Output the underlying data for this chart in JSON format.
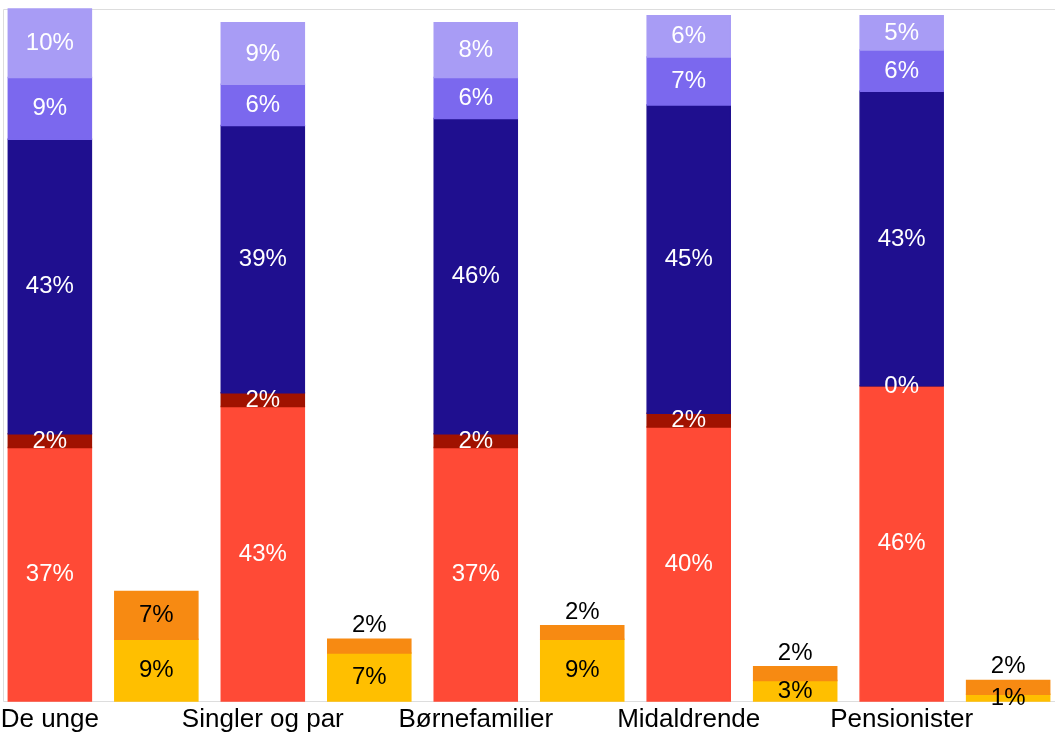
{
  "chart_data": {
    "type": "bar",
    "stacked": true,
    "legend": false,
    "grid": false,
    "tick_labels": "x",
    "categories": [
      "De unge",
      null,
      "Singler og par",
      null,
      "Børnefamilier",
      null,
      "Midaldrende",
      null,
      "Pensionister",
      null
    ],
    "series": [
      {
        "color": "#ff4a36",
        "values": [
          37,
          null,
          43,
          null,
          37,
          null,
          40,
          null,
          46,
          null
        ],
        "value_labels": [
          "37%",
          null,
          "43%",
          null,
          "37%",
          null,
          "40%",
          null,
          "46%",
          null
        ]
      },
      {
        "color": "#a01200",
        "values": [
          2,
          null,
          2,
          null,
          2,
          null,
          2,
          null,
          0,
          null
        ],
        "value_labels": [
          "2%",
          null,
          "2%",
          null,
          "2%",
          null,
          "2%",
          null,
          "0%",
          null
        ]
      },
      {
        "color": "#1f0f8f",
        "values": [
          43,
          null,
          39,
          null,
          46,
          null,
          45,
          null,
          43,
          null
        ],
        "value_labels": [
          "43%",
          null,
          "39%",
          null,
          "46%",
          null,
          "45%",
          null,
          "43%",
          null
        ]
      },
      {
        "color": "#7b68ee",
        "values": [
          9,
          null,
          6,
          null,
          6,
          null,
          7,
          null,
          6,
          null
        ],
        "value_labels": [
          "9%",
          null,
          "6%",
          null,
          "6%",
          null,
          "7%",
          null,
          "6%",
          null
        ]
      },
      {
        "color": "#a89cf5",
        "values": [
          10,
          null,
          9,
          null,
          8,
          null,
          6,
          null,
          5,
          null
        ],
        "value_labels": [
          "10%",
          null,
          "9%",
          null,
          "8%",
          null,
          "6%",
          null,
          "5%",
          null
        ]
      },
      {
        "color": "#ffbf00",
        "values": [
          null,
          9,
          null,
          7,
          null,
          9,
          null,
          3,
          null,
          1
        ],
        "value_labels": [
          null,
          "9%",
          null,
          "7%",
          null,
          "9%",
          null,
          "3%",
          null,
          "1%"
        ]
      },
      {
        "color": "#f78a12",
        "values": [
          null,
          7,
          null,
          2,
          null,
          2,
          null,
          2,
          null,
          2
        ],
        "value_labels": [
          null,
          "7%",
          null,
          "2%",
          null,
          "2%",
          null,
          "2%",
          null,
          "2%"
        ]
      }
    ]
  }
}
